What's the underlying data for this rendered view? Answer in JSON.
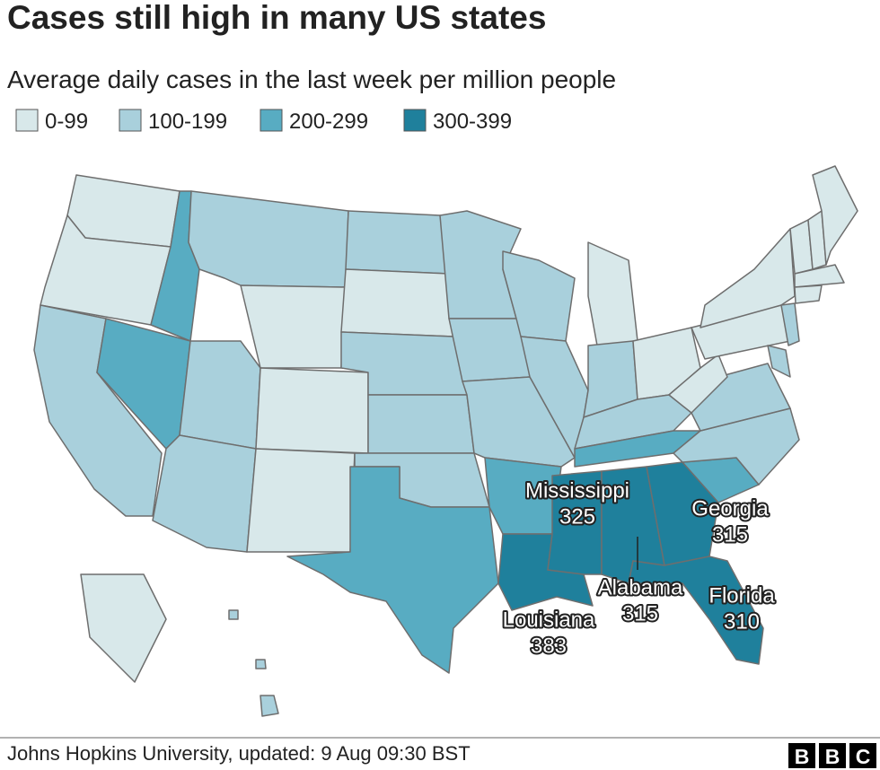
{
  "title": "Cases still high in many US states",
  "subtitle": "Average daily cases in the last week per million people",
  "legend": [
    {
      "label": "0-99",
      "color": "#d8e8ea"
    },
    {
      "label": "100-199",
      "color": "#a9d0dc"
    },
    {
      "label": "200-299",
      "color": "#58acc2"
    },
    {
      "label": "300-399",
      "color": "#1f809c"
    }
  ],
  "annotations": [
    {
      "label": "Mississippi",
      "value": 325
    },
    {
      "label": "Georgia",
      "value": 315
    },
    {
      "label": "Alabama",
      "value": 315
    },
    {
      "label": "Florida",
      "value": 310
    },
    {
      "label": "Louisiana",
      "value": 383
    }
  ],
  "source": "Johns Hopkins University, updated: 9 Aug 09:30 BST",
  "logo": [
    "B",
    "B",
    "C"
  ]
}
